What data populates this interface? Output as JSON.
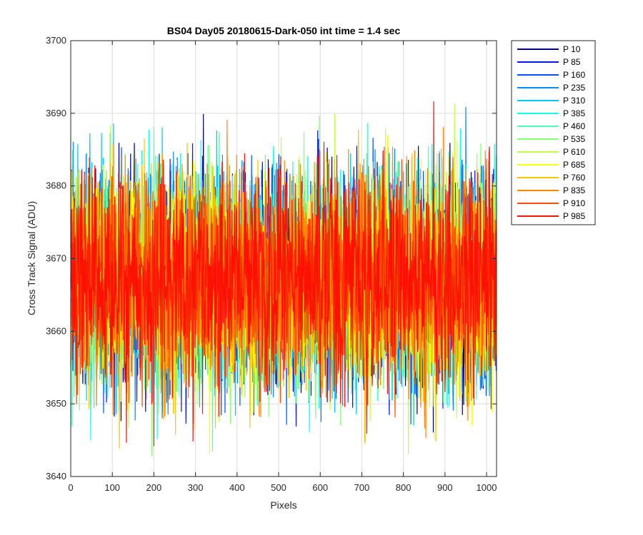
{
  "chart_data": {
    "type": "line",
    "title": "BS04 Day05 20180615-Dark-050 int time = 1.4 sec",
    "xlabel": "Pixels",
    "ylabel": "Cross Track Signal (ADU)",
    "xlim": [
      0,
      1024
    ],
    "ylim": [
      3640,
      3700
    ],
    "xticks": [
      0,
      100,
      200,
      300,
      400,
      500,
      600,
      700,
      800,
      900,
      1000
    ],
    "yticks": [
      3640,
      3650,
      3660,
      3670,
      3680,
      3690,
      3700
    ],
    "grid": true,
    "legend_position": "outside-top-right",
    "noise": {
      "mean": 3667,
      "min": 3640,
      "max": 3696,
      "n_points": 1024
    },
    "series": [
      {
        "name": "P 10",
        "color": "#00008f"
      },
      {
        "name": "P 85",
        "color": "#0014ff"
      },
      {
        "name": "P 160",
        "color": "#0050ff"
      },
      {
        "name": "P 235",
        "color": "#008cff"
      },
      {
        "name": "P 310",
        "color": "#00c8ff"
      },
      {
        "name": "P 385",
        "color": "#10ffef"
      },
      {
        "name": "P 460",
        "color": "#4cffb3"
      },
      {
        "name": "P 535",
        "color": "#88ff77"
      },
      {
        "name": "P 610",
        "color": "#c4ff3b"
      },
      {
        "name": "P 685",
        "color": "#ffff00"
      },
      {
        "name": "P 760",
        "color": "#ffc400"
      },
      {
        "name": "P 835",
        "color": "#ff8800"
      },
      {
        "name": "P 910",
        "color": "#ff4c00"
      },
      {
        "name": "P 985",
        "color": "#ff1000"
      }
    ]
  }
}
